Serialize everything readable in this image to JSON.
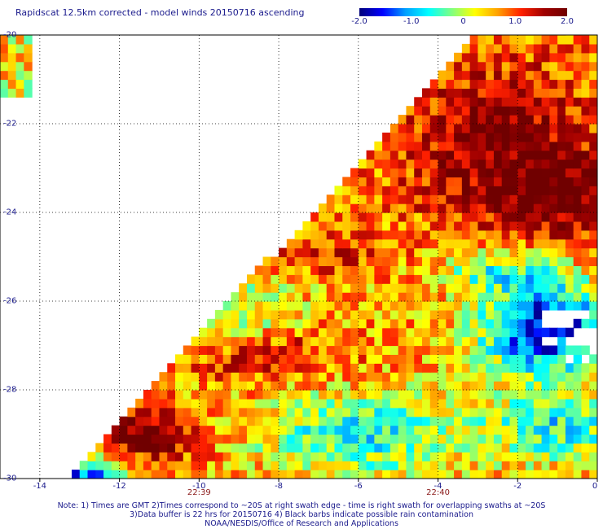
{
  "chart_data": {
    "type": "heatmap",
    "title": "Rapidscat 12.5km corrected - model winds 20150716 ascending",
    "colorbar": {
      "ticks": [
        "-2.0",
        "-1.0",
        "0",
        "1.0",
        "2.0"
      ],
      "range": [
        -2.0,
        2.0
      ],
      "colors": [
        "#00007a",
        "#0000ff",
        "#00a0ff",
        "#00ffff",
        "#80ff80",
        "#ffff00",
        "#ffa000",
        "#ff2000",
        "#a00000",
        "#700000"
      ]
    },
    "x_ticks": [
      "-14",
      "-12",
      "-10",
      "-8",
      "-6",
      "-4",
      "-2",
      "0"
    ],
    "y_ticks": [
      "-20",
      "-22",
      "-24",
      "-26",
      "-28",
      "-30"
    ],
    "xlim": [
      -15,
      0
    ],
    "ylim": [
      -30,
      -20
    ],
    "time_labels": [
      {
        "x": -10,
        "text": "22:39"
      },
      {
        "x": -4,
        "text": "22:40"
      }
    ],
    "grid": true
  },
  "notes": [
    "Note: 1) Times are GMT 2)Times correspond to ~20S at right swath edge - time is right swath for overlapping swaths at ~20S",
    "3)Data buffer is 22 hrs for 20150716 4) Black barbs indicate possible rain contamination",
    "NOAA/NESDIS/Office of Research and Applications"
  ]
}
